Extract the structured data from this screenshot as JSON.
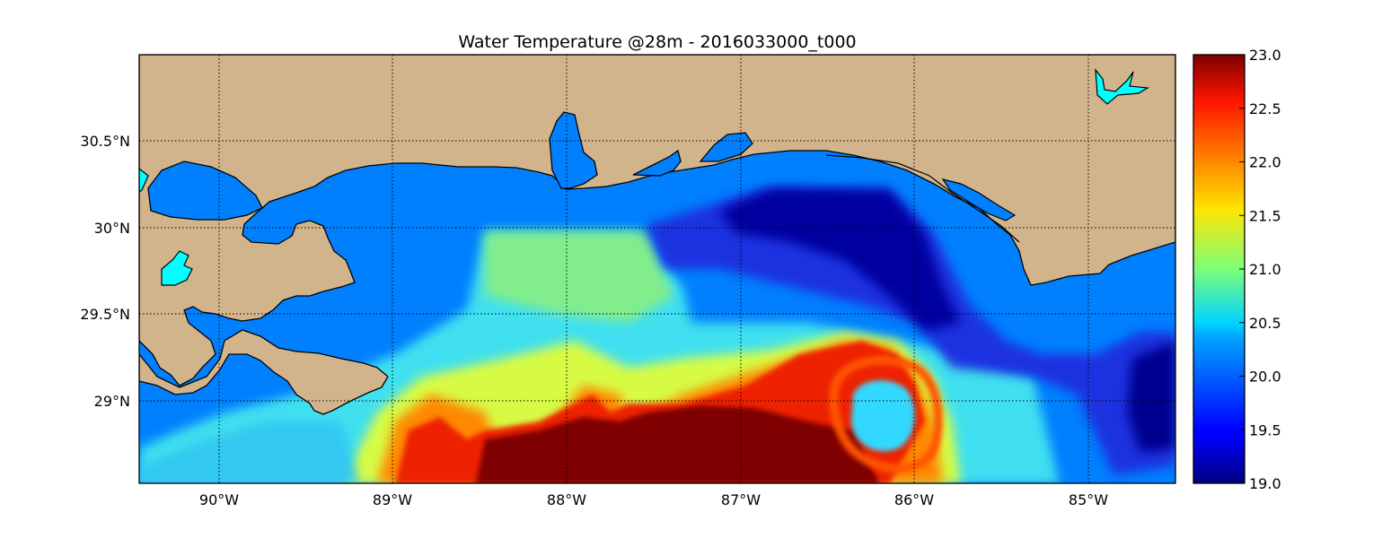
{
  "title": "Water Temperature @28m - 2016033000_t000",
  "map": {
    "lon_range": [
      -90.5,
      -84.5
    ],
    "lat_range": [
      28.55,
      31.0
    ],
    "lon_ticks": [
      {
        "value": -90,
        "label": "90°W"
      },
      {
        "value": -89,
        "label": "89°W"
      },
      {
        "value": -88,
        "label": "88°W"
      },
      {
        "value": -87,
        "label": "87°W"
      },
      {
        "value": -86,
        "label": "86°W"
      },
      {
        "value": -85,
        "label": "85°W"
      }
    ],
    "lat_ticks": [
      {
        "value": 30.5,
        "label": "30.5°N"
      },
      {
        "value": 30.0,
        "label": "30°N"
      },
      {
        "value": 29.5,
        "label": "29.5°N"
      },
      {
        "value": 29.0,
        "label": "29°N"
      }
    ],
    "grid": true,
    "grid_style": "dotted",
    "land_color": "#d2b48c",
    "inland_water_color": "#00ffff",
    "masked_sea_color": "#0080ff",
    "colormap": "jet"
  },
  "colorbar": {
    "min": 19.0,
    "max": 23.0,
    "labels": [
      "23.0",
      "22.5",
      "22.0",
      "21.5",
      "21.0",
      "20.5",
      "20.0",
      "19.5",
      "19.0"
    ]
  }
}
